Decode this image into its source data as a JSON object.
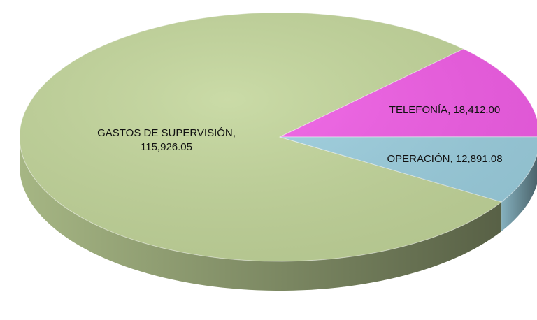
{
  "chart_data": {
    "type": "pie",
    "values": [
      115926.05,
      18412.0,
      12891.08
    ],
    "value_labels": [
      "GASTOS DE SUPERVISIÓN, 115,926.05",
      "TELEFONÍA, 18,412.00",
      "OPERACIÓN, 12,891.08"
    ],
    "colors": [
      "#c3d69b",
      "#f15de6",
      "#9ccfdf"
    ]
  }
}
